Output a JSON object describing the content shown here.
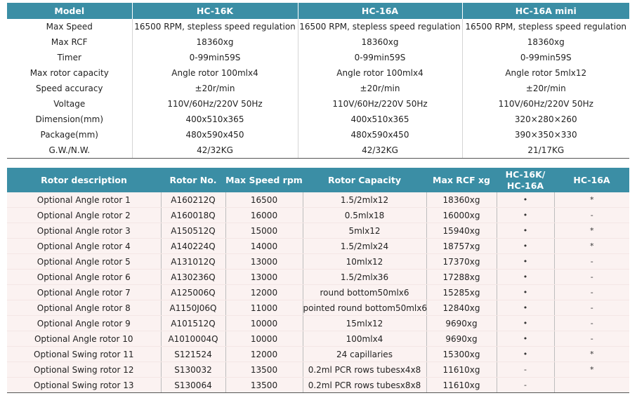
{
  "spec": {
    "headers": [
      "Model",
      "HC-16K",
      "HC-16A",
      "HC-16A mini"
    ],
    "rows": [
      [
        "Max Speed",
        "16500 RPM, stepless speed regulation",
        "16500 RPM, stepless speed regulation",
        "16500 RPM, stepless speed regulation"
      ],
      [
        "Max RCF",
        "18360xg",
        "18360xg",
        "18360xg"
      ],
      [
        "Timer",
        "0-99min59S",
        "0-99min59S",
        "0-99min59S"
      ],
      [
        "Max rotor capacity",
        "Angle rotor  100mlx4",
        "Angle rotor  100mlx4",
        "Angle rotor  5mlx12"
      ],
      [
        "Speed accuracy",
        "±20r/min",
        "±20r/min",
        "±20r/min"
      ],
      [
        "Voltage",
        "110V/60Hz/220V 50Hz",
        "110V/60Hz/220V 50Hz",
        "110V/60Hz/220V 50Hz"
      ],
      [
        "Dimension(mm)",
        "400x510x365",
        "400x510x365",
        "320×280×260"
      ],
      [
        "Package(mm)",
        "480x590x450",
        "480x590x450",
        "390×350×330"
      ],
      [
        "G.W./N.W.",
        "42/32KG",
        "42/32KG",
        "21/17KG"
      ]
    ]
  },
  "rotors": {
    "headers": [
      "Rotor description",
      "Rotor No.",
      "Max Speed rpm",
      "Rotor Capacity",
      "Max RCF xg",
      "HC-16K/ HC-16A",
      "HC-16A"
    ],
    "rows": [
      [
        "Optional Angle rotor 1",
        "A160212Q",
        "16500",
        "1.5/2mlx12",
        "18360xg",
        "•",
        "*"
      ],
      [
        "Optional Angle rotor 2",
        "A160018Q",
        "16000",
        "0.5mlx18",
        "16000xg",
        "•",
        "-"
      ],
      [
        "Optional Angle rotor 3",
        "A150512Q",
        "15000",
        "5mlx12",
        "15940xg",
        "•",
        "*"
      ],
      [
        "Optional Angle rotor 4",
        "A140224Q",
        "14000",
        "1.5/2mlx24",
        "18757xg",
        "•",
        "*"
      ],
      [
        "Optional Angle rotor 5",
        "A131012Q",
        "13000",
        "10mlx12",
        "17370xg",
        "•",
        "-"
      ],
      [
        "Optional Angle rotor 6",
        "A130236Q",
        "13000",
        "1.5/2mlx36",
        "17288xg",
        "•",
        "-"
      ],
      [
        "Optional Angle rotor 7",
        "A125006Q",
        "12000",
        "round bottom50mlx6",
        "15285xg",
        "•",
        "-"
      ],
      [
        "Optional Angle rotor 8",
        "A1150J06Q",
        "11000",
        "pointed round bottom50mlx6",
        "12840xg",
        "•",
        "-"
      ],
      [
        "Optional Angle rotor 9",
        "A101512Q",
        "10000",
        "15mlx12",
        "9690xg",
        "•",
        "-"
      ],
      [
        "Optional Angle rotor 10",
        "A1010004Q",
        "10000",
        "100mlx4",
        "9690xg",
        "•",
        "-"
      ],
      [
        "Optional Swing rotor 11",
        "S121524",
        "12000",
        "24 capillaries",
        "15300xg",
        "•",
        "*"
      ],
      [
        "Optional Swing rotor 12",
        "S130032",
        "13500",
        "0.2ml PCR rows tubesx4x8",
        "11610xg",
        "-",
        "*"
      ],
      [
        "Optional Swing rotor 13",
        "S130064",
        "13500",
        "0.2ml PCR rows tubesx8x8",
        "11610xg",
        "-",
        ""
      ]
    ]
  }
}
